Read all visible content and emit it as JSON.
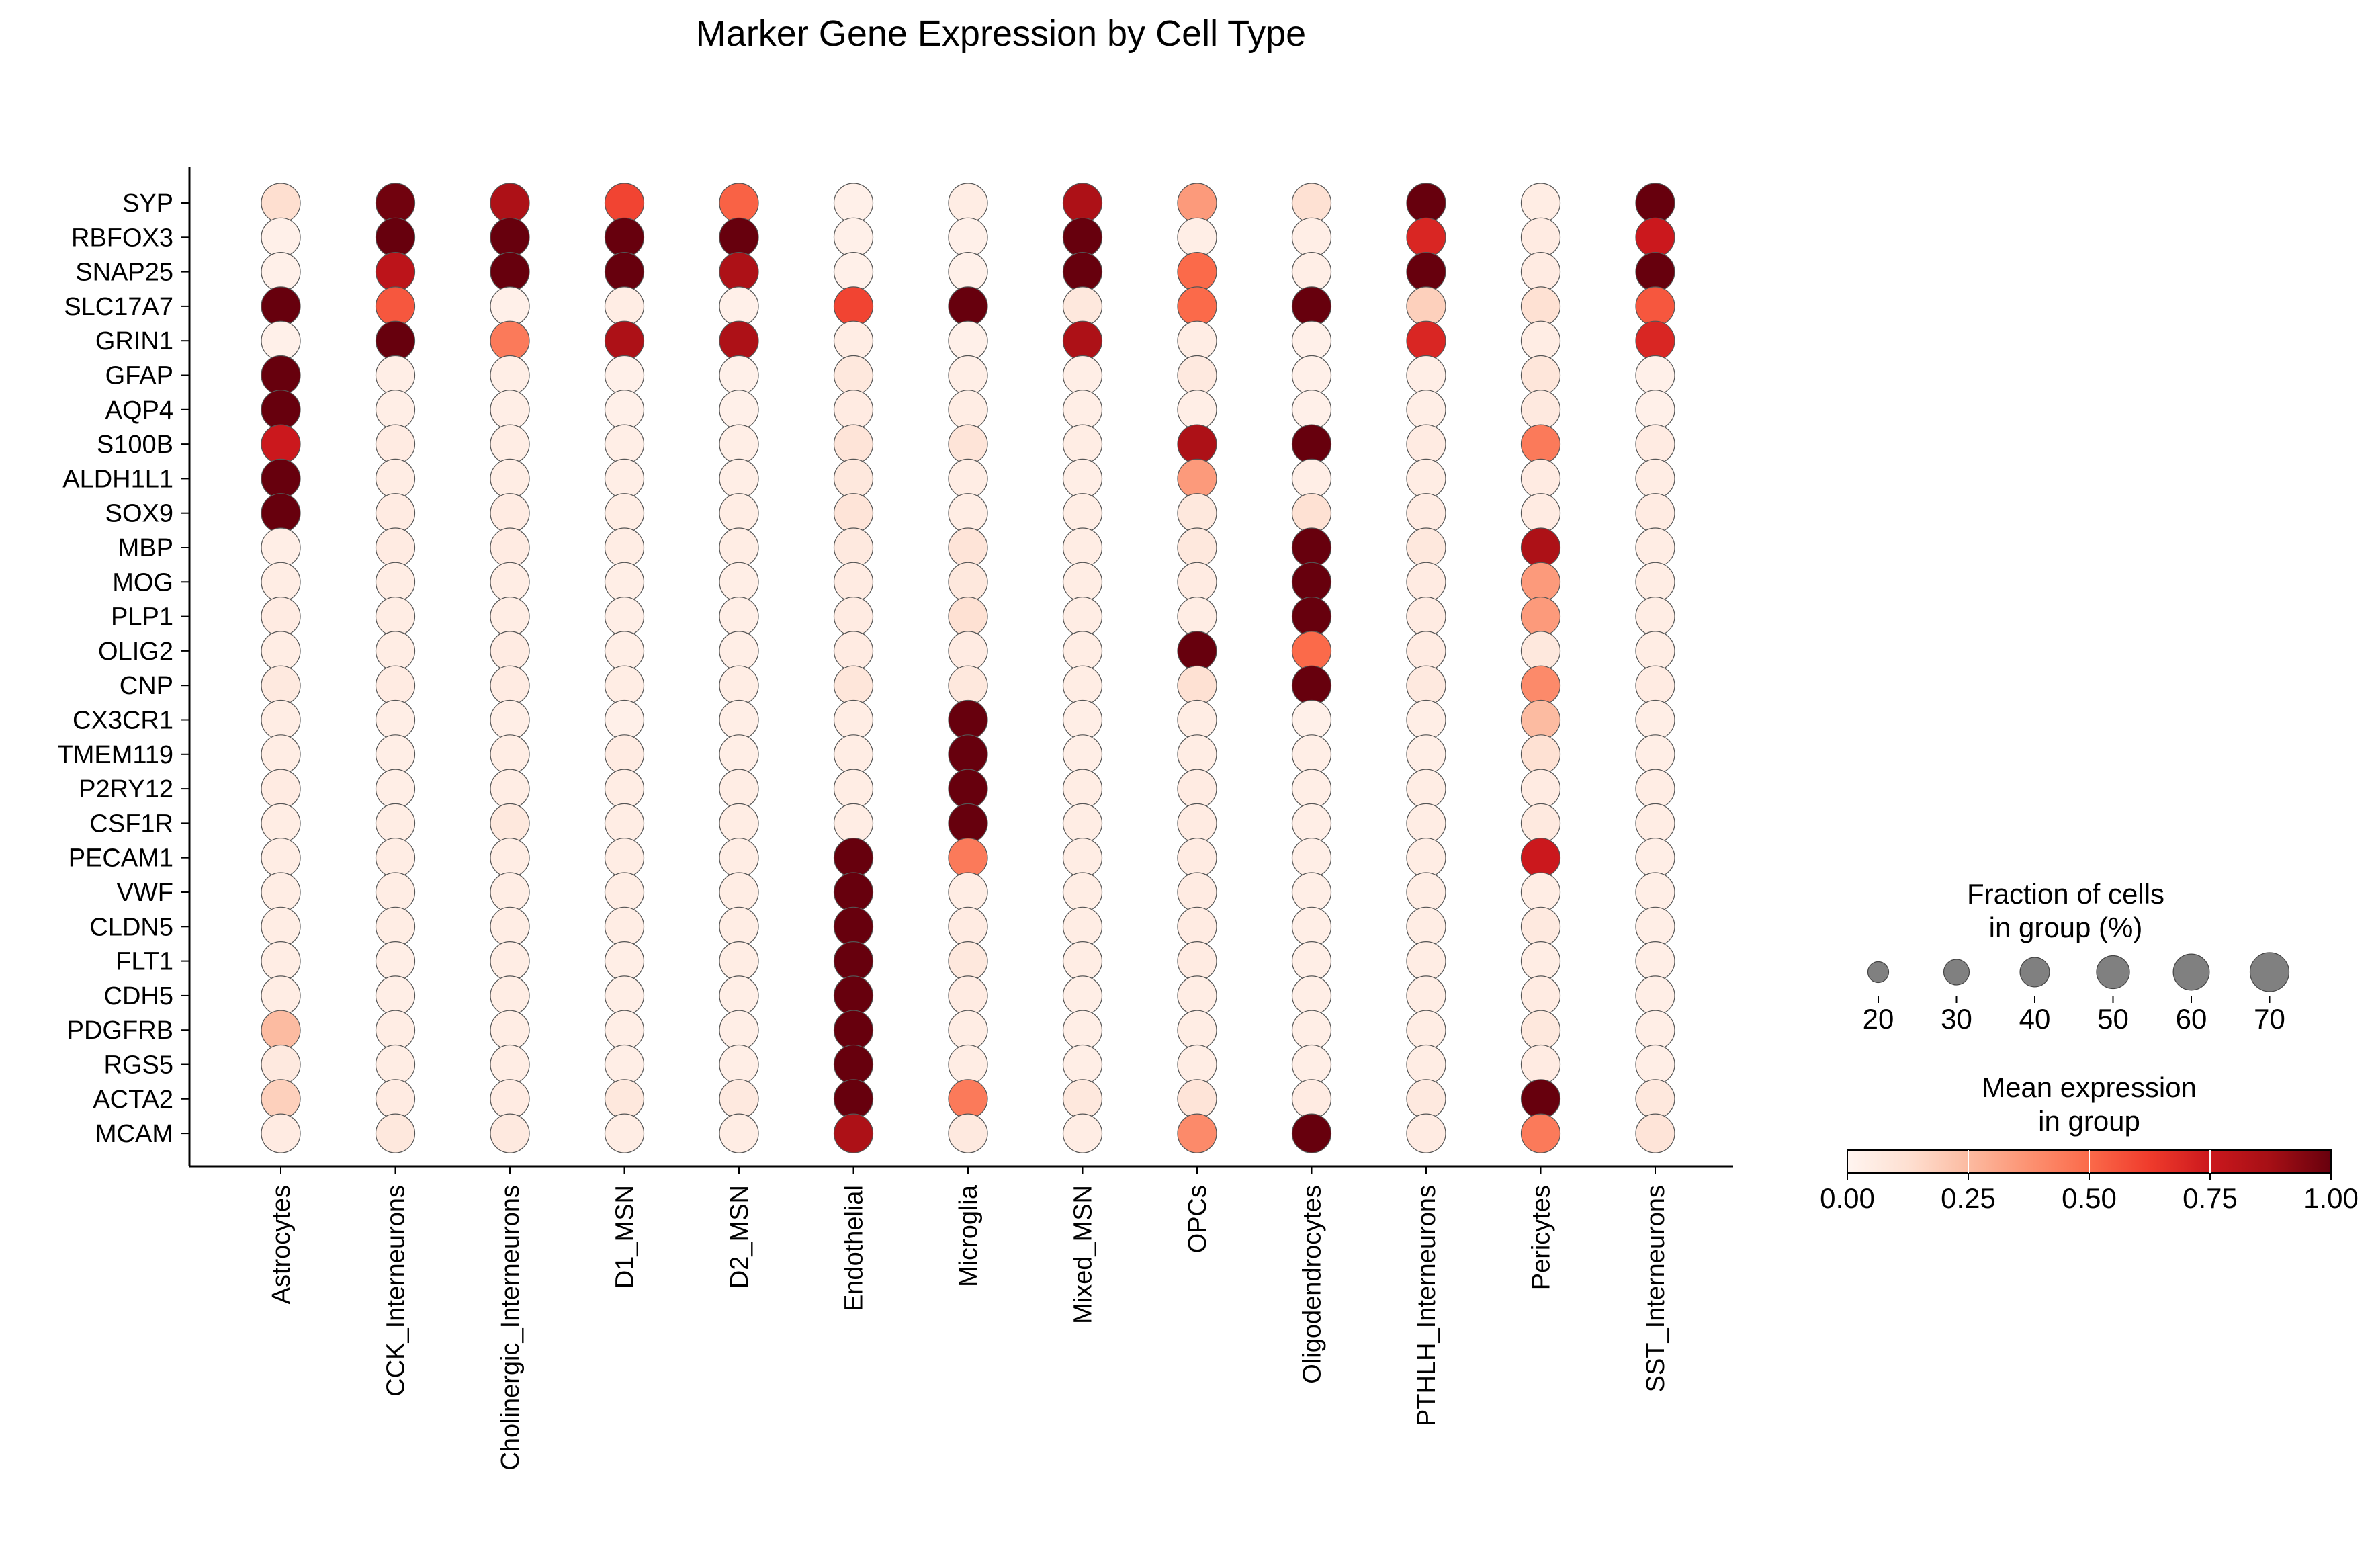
{
  "chart_data": {
    "type": "dotplot",
    "title": "Marker Gene Expression by Cell Type",
    "genes": [
      "SYP",
      "RBFOX3",
      "SNAP25",
      "SLC17A7",
      "GRIN1",
      "GFAP",
      "AQP4",
      "S100B",
      "ALDH1L1",
      "SOX9",
      "MBP",
      "MOG",
      "PLP1",
      "OLIG2",
      "CNP",
      "CX3CR1",
      "TMEM119",
      "P2RY12",
      "CSF1R",
      "PECAM1",
      "VWF",
      "CLDN5",
      "FLT1",
      "CDH5",
      "PDGFRB",
      "RGS5",
      "ACTA2",
      "MCAM"
    ],
    "cell_types": [
      "Astrocytes",
      "CCK_Interneurons",
      "Cholinergic_Interneurons",
      "D1_MSN",
      "D2_MSN",
      "Endothelial",
      "Microglia",
      "Mixed_MSN",
      "OPCs",
      "Oligodendrocytes",
      "PTHLH_Interneurons",
      "Pericytes",
      "SST_Interneurons"
    ],
    "mean_expression": [
      [
        0.13,
        0.98,
        0.85,
        0.6,
        0.52,
        0.03,
        0.05,
        0.85,
        0.35,
        0.12,
        1.0,
        0.05,
        1.0
      ],
      [
        0.03,
        1.0,
        1.0,
        1.0,
        1.0,
        0.03,
        0.03,
        1.0,
        0.04,
        0.04,
        0.7,
        0.06,
        0.75
      ],
      [
        0.03,
        0.8,
        1.0,
        1.0,
        0.85,
        0.03,
        0.03,
        1.0,
        0.5,
        0.04,
        1.0,
        0.06,
        1.0
      ],
      [
        1.0,
        0.55,
        0.03,
        0.05,
        0.03,
        0.6,
        1.0,
        0.08,
        0.5,
        1.0,
        0.18,
        0.12,
        0.55
      ],
      [
        0.03,
        1.0,
        0.45,
        0.85,
        0.85,
        0.05,
        0.03,
        0.85,
        0.05,
        0.03,
        0.7,
        0.05,
        0.7
      ],
      [
        1.0,
        0.04,
        0.04,
        0.03,
        0.03,
        0.08,
        0.04,
        0.04,
        0.07,
        0.03,
        0.04,
        0.09,
        0.03
      ],
      [
        1.0,
        0.04,
        0.04,
        0.03,
        0.03,
        0.06,
        0.05,
        0.04,
        0.04,
        0.03,
        0.04,
        0.07,
        0.03
      ],
      [
        0.75,
        0.06,
        0.05,
        0.04,
        0.04,
        0.1,
        0.1,
        0.05,
        0.85,
        1.0,
        0.06,
        0.45,
        0.06
      ],
      [
        1.0,
        0.05,
        0.05,
        0.04,
        0.04,
        0.08,
        0.05,
        0.04,
        0.35,
        0.04,
        0.05,
        0.06,
        0.05
      ],
      [
        1.0,
        0.06,
        0.06,
        0.05,
        0.05,
        0.1,
        0.05,
        0.05,
        0.08,
        0.12,
        0.06,
        0.06,
        0.06
      ],
      [
        0.04,
        0.06,
        0.06,
        0.05,
        0.05,
        0.07,
        0.1,
        0.05,
        0.08,
        1.0,
        0.08,
        0.85,
        0.05
      ],
      [
        0.05,
        0.05,
        0.05,
        0.04,
        0.04,
        0.06,
        0.08,
        0.05,
        0.06,
        1.0,
        0.06,
        0.35,
        0.05
      ],
      [
        0.06,
        0.05,
        0.05,
        0.04,
        0.04,
        0.06,
        0.12,
        0.05,
        0.05,
        1.0,
        0.06,
        0.35,
        0.05
      ],
      [
        0.05,
        0.05,
        0.06,
        0.04,
        0.04,
        0.06,
        0.06,
        0.05,
        1.0,
        0.5,
        0.06,
        0.08,
        0.05
      ],
      [
        0.07,
        0.06,
        0.06,
        0.05,
        0.05,
        0.09,
        0.08,
        0.05,
        0.12,
        1.0,
        0.07,
        0.4,
        0.06
      ],
      [
        0.05,
        0.04,
        0.04,
        0.03,
        0.04,
        0.05,
        1.0,
        0.04,
        0.05,
        0.03,
        0.04,
        0.25,
        0.04
      ],
      [
        0.05,
        0.04,
        0.05,
        0.06,
        0.04,
        0.05,
        1.0,
        0.04,
        0.05,
        0.04,
        0.04,
        0.12,
        0.04
      ],
      [
        0.06,
        0.04,
        0.05,
        0.05,
        0.05,
        0.05,
        1.0,
        0.05,
        0.06,
        0.04,
        0.05,
        0.06,
        0.05
      ],
      [
        0.05,
        0.05,
        0.08,
        0.05,
        0.05,
        0.05,
        1.0,
        0.05,
        0.06,
        0.04,
        0.05,
        0.07,
        0.05
      ],
      [
        0.05,
        0.05,
        0.05,
        0.05,
        0.05,
        1.0,
        0.45,
        0.05,
        0.06,
        0.04,
        0.05,
        0.75,
        0.04
      ],
      [
        0.05,
        0.05,
        0.05,
        0.05,
        0.05,
        1.0,
        0.05,
        0.05,
        0.06,
        0.04,
        0.05,
        0.05,
        0.04
      ],
      [
        0.05,
        0.05,
        0.05,
        0.05,
        0.05,
        1.0,
        0.06,
        0.05,
        0.06,
        0.04,
        0.05,
        0.07,
        0.04
      ],
      [
        0.05,
        0.04,
        0.05,
        0.04,
        0.05,
        1.0,
        0.08,
        0.05,
        0.06,
        0.04,
        0.05,
        0.05,
        0.04
      ],
      [
        0.05,
        0.04,
        0.05,
        0.04,
        0.04,
        1.0,
        0.06,
        0.04,
        0.05,
        0.04,
        0.05,
        0.06,
        0.04
      ],
      [
        0.25,
        0.05,
        0.05,
        0.04,
        0.04,
        1.0,
        0.05,
        0.04,
        0.05,
        0.04,
        0.05,
        0.08,
        0.04
      ],
      [
        0.07,
        0.05,
        0.05,
        0.04,
        0.04,
        1.0,
        0.05,
        0.04,
        0.05,
        0.04,
        0.05,
        0.06,
        0.04
      ],
      [
        0.18,
        0.06,
        0.06,
        0.08,
        0.07,
        1.0,
        0.45,
        0.08,
        0.1,
        0.06,
        0.07,
        1.0,
        0.08
      ],
      [
        0.06,
        0.08,
        0.07,
        0.05,
        0.05,
        0.85,
        0.07,
        0.05,
        0.4,
        1.0,
        0.06,
        0.45,
        0.1
      ]
    ],
    "fraction_pct": 70,
    "xlabel": "",
    "ylabel": "",
    "size_legend": {
      "title_line1": "Fraction of cells",
      "title_line2": "in group (%)",
      "values": [
        20,
        30,
        40,
        50,
        60,
        70
      ],
      "labels": [
        "20",
        "30",
        "40",
        "50",
        "60",
        "70"
      ],
      "color": "#808080"
    },
    "color_legend": {
      "title_line1": "Mean expression",
      "title_line2": "in group",
      "colormap": "Reds",
      "range": [
        0,
        1
      ],
      "ticks": [
        "0.00",
        "0.25",
        "0.50",
        "0.75",
        "1.00"
      ]
    },
    "grid": false
  }
}
